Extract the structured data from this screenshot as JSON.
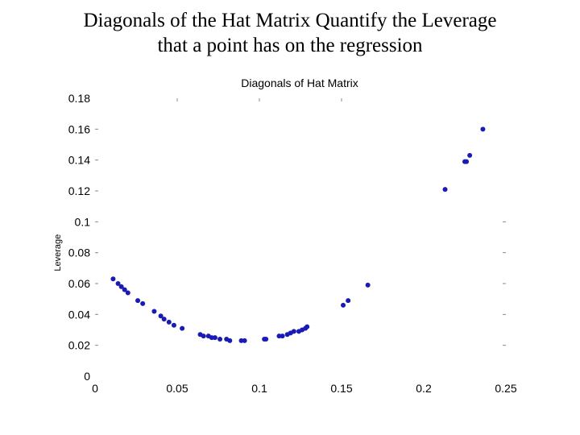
{
  "slide": {
    "title_line1": "Diagonals of the Hat Matrix Quantify the Leverage",
    "title_line2": "that a point has on the regression"
  },
  "chart_data": {
    "type": "scatter",
    "title": "Diagonals of Hat Matrix",
    "xlabel": "",
    "ylabel": "Leverage",
    "xlim": [
      0,
      0.25
    ],
    "ylim": [
      0,
      0.18
    ],
    "x_ticks": [
      "0",
      "0.05",
      "0.1",
      "0.15",
      "0.2",
      "0.25"
    ],
    "y_ticks": [
      "0",
      "0.02",
      "0.04",
      "0.06",
      "0.08",
      "0.1",
      "0.12",
      "0.14",
      "0.16",
      "0.18"
    ],
    "grid": false,
    "marker_color": "#1a1ab4",
    "series": [
      {
        "x": [
          0.011,
          0.014,
          0.016,
          0.018,
          0.02,
          0.026,
          0.029,
          0.036,
          0.04,
          0.042,
          0.045,
          0.048,
          0.053,
          0.064,
          0.066,
          0.069,
          0.071,
          0.073,
          0.076,
          0.08,
          0.082,
          0.089,
          0.091,
          0.103,
          0.104,
          0.112,
          0.114,
          0.117,
          0.119,
          0.121,
          0.124,
          0.126,
          0.128,
          0.129,
          0.151,
          0.154,
          0.166,
          0.213,
          0.225,
          0.226,
          0.228,
          0.236
        ],
        "y": [
          0.063,
          0.06,
          0.058,
          0.056,
          0.054,
          0.049,
          0.047,
          0.042,
          0.039,
          0.037,
          0.035,
          0.033,
          0.031,
          0.027,
          0.026,
          0.026,
          0.025,
          0.025,
          0.024,
          0.024,
          0.023,
          0.023,
          0.023,
          0.024,
          0.024,
          0.026,
          0.026,
          0.027,
          0.028,
          0.029,
          0.029,
          0.03,
          0.031,
          0.032,
          0.046,
          0.049,
          0.059,
          0.121,
          0.139,
          0.139,
          0.143,
          0.16
        ]
      }
    ]
  }
}
